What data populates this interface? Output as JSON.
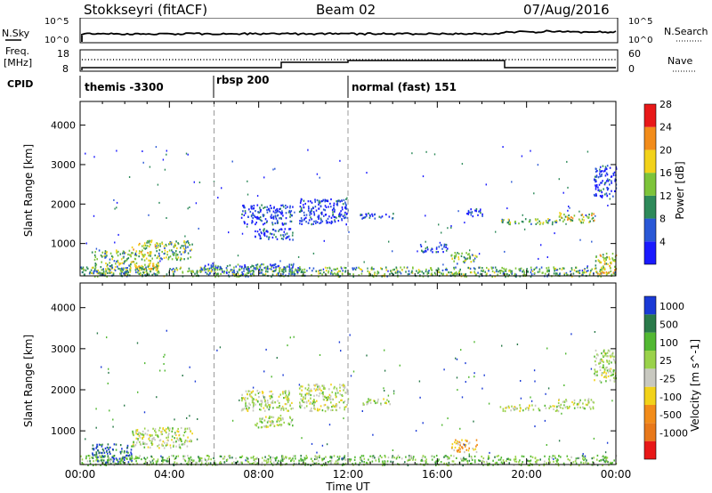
{
  "header": {
    "station": "Stokkseyri (fitACF)",
    "beam": "Beam 02",
    "date": "07/Aug/2016"
  },
  "noise_panel": {
    "left_label": "N.Sky",
    "right_label": "N.Search",
    "left_ticks": [
      "10^5",
      "10^0"
    ],
    "right_ticks": [
      "10^5",
      "10^0"
    ]
  },
  "freq_panel": {
    "left_label_1": "Freq.",
    "left_label_2": "[MHz]",
    "right_label": "Nave",
    "left_ticks": [
      "18",
      "8"
    ],
    "right_ticks": [
      "60",
      "0"
    ]
  },
  "cpid_panel": {
    "label": "CPID",
    "modes": [
      {
        "name": "themis -3300",
        "start_hour": 0
      },
      {
        "name": "rbsp 200",
        "start_hour": 6
      },
      {
        "name": "normal (fast) 151",
        "start_hour": 12
      }
    ]
  },
  "time_axis": {
    "label": "Time UT",
    "ticks": [
      "00:00",
      "04:00",
      "08:00",
      "12:00",
      "16:00",
      "20:00",
      "00:00"
    ]
  },
  "chart_data": [
    {
      "type": "heatmap",
      "name": "power-panel",
      "ylabel": "Slant Range [km]",
      "xlabel": "",
      "xlim_hours": [
        0,
        24
      ],
      "ylim_km": [
        180,
        4600
      ],
      "yticks": [
        "1000",
        "2000",
        "3000",
        "4000"
      ],
      "colorbar": {
        "label": "Power [dB]",
        "ticks": [
          "4",
          "8",
          "12",
          "16",
          "20",
          "24",
          "28"
        ],
        "colors": [
          "#1a1aff",
          "#2a58d6",
          "#2e8a5a",
          "#7dc43a",
          "#f2d21a",
          "#f28c1a",
          "#e81818"
        ]
      },
      "echo_regions": [
        {
          "t0": 0.0,
          "t1": 24.0,
          "r0": 180,
          "r1": 420,
          "level": 3
        },
        {
          "t0": 0.5,
          "t1": 2.3,
          "r0": 250,
          "r1": 850,
          "level": 3
        },
        {
          "t0": 2.3,
          "t1": 3.5,
          "r0": 350,
          "r1": 1100,
          "level": 4
        },
        {
          "t0": 3.5,
          "t1": 5.0,
          "r0": 600,
          "r1": 1100,
          "level": 3
        },
        {
          "t0": 5.2,
          "t1": 10.0,
          "r0": 250,
          "r1": 500,
          "level": 2
        },
        {
          "t0": 7.2,
          "t1": 9.5,
          "r0": 1500,
          "r1": 2000,
          "level": 1
        },
        {
          "t0": 7.8,
          "t1": 9.5,
          "r0": 1100,
          "r1": 1400,
          "level": 1
        },
        {
          "t0": 9.8,
          "t1": 12.0,
          "r0": 1500,
          "r1": 2150,
          "level": 1
        },
        {
          "t0": 12.5,
          "t1": 14.0,
          "r0": 1650,
          "r1": 1800,
          "level": 1
        },
        {
          "t0": 15.2,
          "t1": 16.5,
          "r0": 800,
          "r1": 1000,
          "level": 1
        },
        {
          "t0": 16.6,
          "t1": 17.8,
          "r0": 500,
          "r1": 800,
          "level": 3
        },
        {
          "t0": 17.3,
          "t1": 18.0,
          "r0": 1700,
          "r1": 1900,
          "level": 1
        },
        {
          "t0": 18.8,
          "t1": 21.4,
          "r0": 1500,
          "r1": 1650,
          "level": 3
        },
        {
          "t0": 21.4,
          "t1": 23.0,
          "r0": 1550,
          "r1": 1800,
          "level": 4
        },
        {
          "t0": 23.0,
          "t1": 24.0,
          "r0": 2200,
          "r1": 3000,
          "level": 1
        },
        {
          "t0": 23.0,
          "t1": 24.0,
          "r0": 250,
          "r1": 800,
          "level": 4
        }
      ]
    },
    {
      "type": "heatmap",
      "name": "velocity-panel",
      "ylabel": "Slant Range [km]",
      "xlabel": "Time UT",
      "xlim_hours": [
        0,
        24
      ],
      "ylim_km": [
        180,
        4600
      ],
      "yticks": [
        "1000",
        "2000",
        "3000",
        "4000"
      ],
      "colorbar": {
        "label": "Velocity [m s^-1]",
        "ticks": [
          "1000",
          "500",
          "100",
          "25",
          "-25",
          "-100",
          "-500",
          "-1000"
        ],
        "colors": [
          "#1a3ad6",
          "#2a7a4a",
          "#52b832",
          "#9ad24a",
          "#c8c8c0",
          "#f2d21a",
          "#f28c1a",
          "#e8781a",
          "#e81818"
        ]
      },
      "echo_regions": [
        {
          "t0": 0.0,
          "t1": 24.0,
          "r0": 180,
          "r1": 420,
          "level": 3
        },
        {
          "t0": 0.5,
          "t1": 2.3,
          "r0": 250,
          "r1": 700,
          "level": 1
        },
        {
          "t0": 2.3,
          "t1": 5.0,
          "r0": 600,
          "r1": 1100,
          "level": 4
        },
        {
          "t0": 7.2,
          "t1": 9.5,
          "r0": 1500,
          "r1": 2000,
          "level": 4
        },
        {
          "t0": 7.8,
          "t1": 9.5,
          "r0": 1100,
          "r1": 1400,
          "level": 4
        },
        {
          "t0": 9.8,
          "t1": 12.0,
          "r0": 1500,
          "r1": 2150,
          "level": 4
        },
        {
          "t0": 12.5,
          "t1": 14.0,
          "r0": 1650,
          "r1": 1800,
          "level": 4
        },
        {
          "t0": 16.6,
          "t1": 17.8,
          "r0": 500,
          "r1": 800,
          "level": 6
        },
        {
          "t0": 18.8,
          "t1": 21.4,
          "r0": 1500,
          "r1": 1650,
          "level": 4
        },
        {
          "t0": 21.4,
          "t1": 23.0,
          "r0": 1550,
          "r1": 1800,
          "level": 4
        },
        {
          "t0": 23.0,
          "t1": 24.0,
          "r0": 2200,
          "r1": 3000,
          "level": 4
        }
      ]
    }
  ]
}
